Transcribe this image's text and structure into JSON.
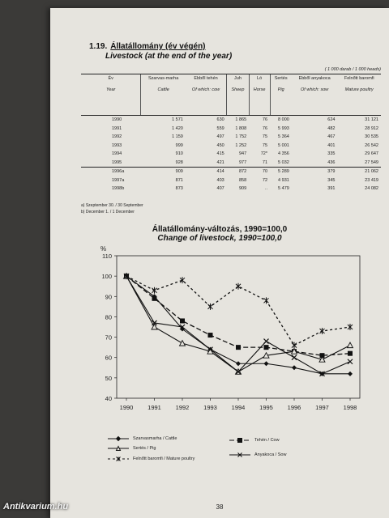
{
  "table_title": {
    "number": "1.19.",
    "hu": "Állatállomány (év végén)",
    "en": "Livestock (at the end of the year)"
  },
  "units": "( 1 000 darab / 1 000 heads)",
  "columns": [
    {
      "hu": "Év",
      "en": "Year"
    },
    {
      "hu": "Szarvas-marha",
      "en": "Cattle"
    },
    {
      "hu": "Ebből tehén",
      "en": "Of which: cow"
    },
    {
      "hu": "Juh",
      "en": "Sheep"
    },
    {
      "hu": "Ló",
      "en": "Horse"
    },
    {
      "hu": "Sertés",
      "en": "Pig"
    },
    {
      "hu": "Ebből anyakoca",
      "en": "Of which: sow"
    },
    {
      "hu": "Felnőtt baromfi",
      "en": "Mature poultry"
    }
  ],
  "rows": [
    [
      "1990",
      "1 571",
      "630",
      "1 865",
      "76",
      "8 000",
      "624",
      "31 121"
    ],
    [
      "1991",
      "1 420",
      "559",
      "1 808",
      "76",
      "5 993",
      "482",
      "28 912"
    ],
    [
      "1992",
      "1 159",
      "497",
      "1 752",
      "75",
      "5 364",
      "467",
      "30 535"
    ],
    [
      "1993",
      "999",
      "450",
      "1 252",
      "75",
      "5 001",
      "401",
      "26 542"
    ],
    [
      "1994",
      "910",
      "415",
      "947",
      "72*",
      "4 356",
      "335",
      "29 647"
    ],
    [
      "1995",
      "928",
      "421",
      "977",
      "71",
      "5 032",
      "436",
      "27 549"
    ],
    [
      "1996a",
      "909",
      "414",
      "872",
      "70",
      "5 289",
      "379",
      "21 062"
    ],
    [
      "1997a",
      "871",
      "403",
      "858",
      "72",
      "4 931",
      "345",
      "23 419"
    ],
    [
      "1998b",
      "873",
      "407",
      "909",
      "..",
      "5 479",
      "391",
      "24 082"
    ]
  ],
  "notes": [
    "a) Szeptember 30. / 30 September",
    "b) December 1. / 1 December"
  ],
  "chart_data": {
    "type": "line",
    "title": "Állatállomány-változás, 1990=100,0",
    "subtitle": "Change of livestock, 1990=100,0",
    "ylabel": "%",
    "ylim": [
      40,
      110
    ],
    "yticks": [
      40,
      50,
      60,
      70,
      80,
      90,
      100,
      110
    ],
    "x": [
      "1990",
      "1991",
      "1992",
      "1993",
      "1994",
      "1995",
      "1996",
      "1997",
      "1998"
    ],
    "grid": false,
    "series": [
      {
        "name": "Szarvasmarha / Cattle",
        "values": [
          100,
          90,
          74,
          64,
          57,
          57,
          55,
          52,
          52
        ],
        "color": "#111111",
        "style": "solid",
        "marker": "diamond"
      },
      {
        "name": "Tehén / Cow",
        "values": [
          100,
          89,
          78,
          71,
          65,
          65,
          63,
          61,
          62
        ],
        "color": "#111111",
        "style": "dashed",
        "marker": "square"
      },
      {
        "name": "Sertés / Pig",
        "values": [
          100,
          75,
          67,
          63,
          53,
          61,
          63,
          59,
          66
        ],
        "color": "#111111",
        "style": "solid",
        "marker": "triangle"
      },
      {
        "name": "Anyakoca / Sow",
        "values": [
          100,
          77,
          75,
          64,
          53,
          68,
          60,
          52,
          58
        ],
        "color": "#111111",
        "style": "solid",
        "marker": "x"
      },
      {
        "name": "Felnőtt baromfi / Mature poultry",
        "values": [
          100,
          93,
          98,
          85,
          95,
          88,
          66,
          73,
          75
        ],
        "color": "#111111",
        "style": "dotted",
        "marker": "cross"
      }
    ]
  },
  "page_number": "38",
  "watermark": "Antikvarium.hu"
}
